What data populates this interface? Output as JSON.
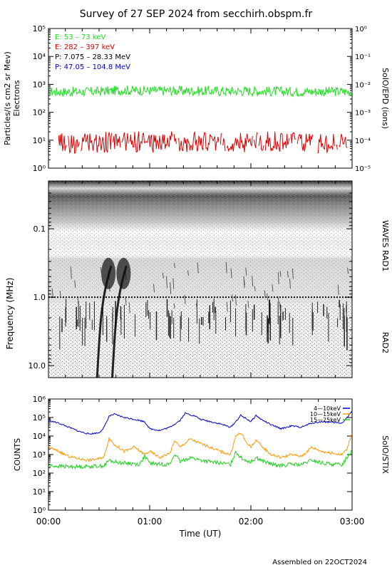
{
  "title": "Survey of 27 SEP 2024 from secchirh.obspm.fr",
  "footer": "Assembled on 22OCT2024",
  "chart_data": [
    {
      "type": "line",
      "panel": "epd",
      "ylabel": "Particles/(s cm2 sr Mev)",
      "ylabel2": "Electrons",
      "right_label": "SoIO/EPD (ions)",
      "yscale": "log",
      "ylim": [
        1,
        100000
      ],
      "yticks": [
        1,
        10,
        100,
        1000,
        10000,
        100000
      ],
      "ytick_labels": [
        "10⁰",
        "10¹",
        "10²",
        "10³",
        "10⁴",
        "10⁵"
      ],
      "right_yscale": "log",
      "right_ylim": [
        1e-05,
        1
      ],
      "right_ytick_labels": [
        "10⁻⁵",
        "10⁻⁴",
        "10⁻³",
        "10⁻²",
        "10⁻¹",
        "10⁰"
      ],
      "xlim_hours": [
        0,
        3
      ],
      "legend": [
        {
          "name": "E: 53 – 73 keV",
          "color": "#22dd22"
        },
        {
          "name": "E: 282 – 397 keV",
          "color": "#dd0000"
        },
        {
          "name": "P: 7.075 – 28.33 MeV",
          "color": "#000000"
        },
        {
          "name": "P: 47.05 – 104.8 MeV",
          "color": "#0000cc"
        }
      ],
      "series": [
        {
          "name": "E: 53 – 73 keV",
          "color": "#22dd22",
          "x_hours": [
            0,
            0.25,
            0.5,
            0.75,
            1.0,
            1.25,
            1.5,
            1.75,
            2.0,
            2.25,
            2.5,
            2.75,
            3.0
          ],
          "values": [
            550,
            540,
            560,
            620,
            600,
            590,
            580,
            570,
            580,
            560,
            550,
            560,
            550
          ]
        },
        {
          "name": "E: 282 – 397 keV",
          "color": "#dd0000",
          "x_hours": [
            0.1,
            0.25,
            0.5,
            0.75,
            1.0,
            1.25,
            1.5,
            1.75,
            2.0,
            2.25,
            2.5,
            2.75,
            2.95
          ],
          "values": [
            10,
            8,
            9,
            10,
            9,
            10,
            9,
            10,
            9,
            10,
            9,
            9,
            9
          ]
        }
      ]
    },
    {
      "type": "heatmap",
      "panel": "waves",
      "ylabel": "Frequency (MHz)",
      "right_label_top": "WAVES RAD1",
      "right_label_bottom": "RAD2",
      "yscale": "log",
      "ylim_mhz": [
        0.02,
        15
      ],
      "yticks": [
        0.1,
        1.0,
        10.0
      ],
      "ytick_labels": [
        "0.1",
        "1.0",
        "10.0"
      ],
      "xlim_hours": [
        0,
        3
      ],
      "features": [
        {
          "kind": "type-III-burst",
          "t_start_hours": 0.55,
          "t_end_hours": 0.48
        },
        {
          "kind": "type-III-burst",
          "t_start_hours": 0.7,
          "t_end_hours": 0.63
        }
      ]
    },
    {
      "type": "line",
      "panel": "stix",
      "ylabel": "COUNTS",
      "right_label": "SoIO/STIX",
      "xlabel": "Time (UT)",
      "yscale": "log",
      "ylim": [
        1,
        1000000
      ],
      "yticks": [
        1,
        10,
        100,
        1000,
        10000,
        100000,
        1000000
      ],
      "ytick_labels": [
        "10⁰",
        "10¹",
        "10²",
        "10³",
        "10⁴",
        "10⁵",
        "10⁶"
      ],
      "xlim_hours": [
        0,
        3
      ],
      "xtick_hours": [
        0,
        1,
        2,
        3
      ],
      "xtick_labels": [
        "00:00",
        "01:00",
        "02:00",
        "03:00"
      ],
      "legend": [
        {
          "name": "4—10keV",
          "color": "#0000cc"
        },
        {
          "name": "10—15keV",
          "color": "#ff9900"
        },
        {
          "name": "15—25keV",
          "color": "#22cc22"
        }
      ],
      "series": [
        {
          "name": "4—10keV",
          "color": "#0000cc",
          "x_hours": [
            0,
            0.1,
            0.2,
            0.3,
            0.4,
            0.5,
            0.55,
            0.6,
            0.65,
            0.75,
            0.85,
            0.95,
            1.0,
            1.1,
            1.2,
            1.3,
            1.35,
            1.45,
            1.5,
            1.6,
            1.7,
            1.8,
            1.85,
            1.9,
            1.95,
            2.0,
            2.05,
            2.1,
            2.2,
            2.3,
            2.4,
            2.5,
            2.6,
            2.7,
            2.8,
            2.9,
            2.95,
            3.0
          ],
          "values": [
            70000,
            50000,
            30000,
            18000,
            13000,
            15000,
            30000,
            120000,
            150000,
            100000,
            80000,
            60000,
            25000,
            20000,
            30000,
            70000,
            170000,
            120000,
            80000,
            60000,
            45000,
            30000,
            60000,
            130000,
            90000,
            60000,
            130000,
            80000,
            40000,
            25000,
            35000,
            30000,
            50000,
            60000,
            55000,
            50000,
            100000,
            220000
          ]
        },
        {
          "name": "10—15keV",
          "color": "#ff9900",
          "x_hours": [
            0,
            0.1,
            0.2,
            0.3,
            0.4,
            0.5,
            0.55,
            0.6,
            0.65,
            0.75,
            0.85,
            0.95,
            1.0,
            1.1,
            1.2,
            1.25,
            1.3,
            1.4,
            1.5,
            1.6,
            1.7,
            1.8,
            1.85,
            1.9,
            1.95,
            2.0,
            2.05,
            2.1,
            2.2,
            2.3,
            2.4,
            2.5,
            2.6,
            2.7,
            2.8,
            2.9,
            2.95,
            3.0
          ],
          "values": [
            2500,
            1500,
            800,
            600,
            500,
            600,
            800,
            8000,
            3500,
            1500,
            2500,
            1000,
            1500,
            700,
            1200,
            6000,
            2500,
            7000,
            4000,
            2500,
            1500,
            1000,
            10000,
            15000,
            5000,
            2500,
            6000,
            3000,
            1000,
            700,
            1000,
            800,
            2500,
            1500,
            1200,
            1000,
            2000,
            15000
          ]
        },
        {
          "name": "15—25keV",
          "color": "#22cc22",
          "x_hours": [
            0,
            0.2,
            0.4,
            0.55,
            0.6,
            0.65,
            0.75,
            0.9,
            0.95,
            1.0,
            1.1,
            1.2,
            1.25,
            1.3,
            1.4,
            1.5,
            1.6,
            1.7,
            1.8,
            1.85,
            1.9,
            1.95,
            2.0,
            2.05,
            2.1,
            2.2,
            2.3,
            2.4,
            2.5,
            2.6,
            2.7,
            2.8,
            2.9,
            3.0
          ],
          "values": [
            250,
            220,
            230,
            250,
            500,
            400,
            350,
            300,
            800,
            350,
            300,
            300,
            1100,
            400,
            700,
            500,
            400,
            350,
            300,
            1500,
            700,
            500,
            400,
            700,
            500,
            300,
            250,
            300,
            280,
            500,
            350,
            300,
            280,
            1800
          ]
        }
      ]
    }
  ]
}
